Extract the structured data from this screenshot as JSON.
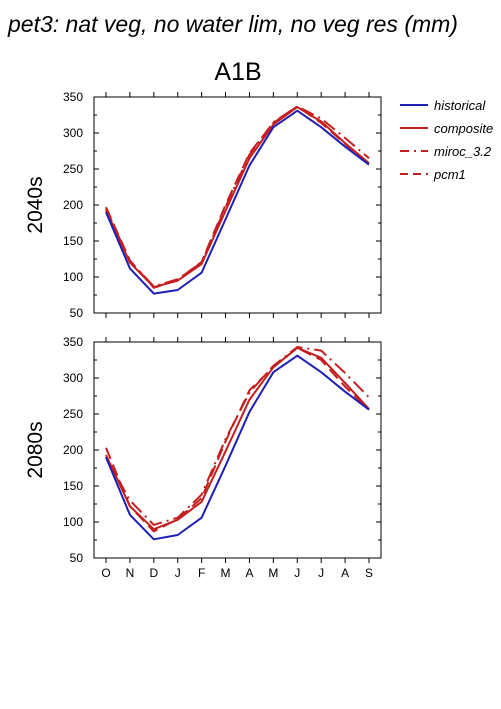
{
  "figure": {
    "title": "pet3: nat veg, no water lim, no veg res (mm)",
    "subtitle": "A1B"
  },
  "colors": {
    "historical": "#1f1fb4",
    "model": "#c41e1e",
    "axis": "#000000"
  },
  "legend": {
    "placement": "right",
    "entries": [
      {
        "label": "historical",
        "style": "solid",
        "color": "#1f1fb4"
      },
      {
        "label": "composite",
        "style": "solid",
        "color": "#c41e1e"
      },
      {
        "label": "miroc_3.2",
        "style": "dashdot",
        "color": "#c41e1e"
      },
      {
        "label": "pcm1",
        "style": "dashed",
        "color": "#c41e1e"
      }
    ]
  },
  "chart_data": [
    {
      "type": "line",
      "panel_label": "2040s",
      "x": [
        "O",
        "N",
        "D",
        "J",
        "F",
        "M",
        "A",
        "M",
        "J",
        "J",
        "A",
        "S"
      ],
      "ylim": [
        50,
        350
      ],
      "yticks": [
        50,
        100,
        150,
        200,
        250,
        300,
        350
      ],
      "grid": false,
      "series": [
        {
          "name": "historical",
          "style": "solid",
          "values": [
            190,
            112,
            77,
            82,
            106,
            180,
            255,
            308,
            331,
            308,
            281,
            256
          ]
        },
        {
          "name": "composite",
          "style": "solid",
          "values": [
            193,
            120,
            86,
            95,
            118,
            192,
            265,
            312,
            336,
            316,
            286,
            258
          ]
        },
        {
          "name": "miroc_3.2",
          "style": "dashdot",
          "values": [
            195,
            122,
            87,
            97,
            120,
            197,
            270,
            315,
            337,
            320,
            293,
            265
          ]
        },
        {
          "name": "pcm1",
          "style": "dashed",
          "values": [
            197,
            123,
            85,
            96,
            121,
            200,
            272,
            314,
            337,
            314,
            285,
            257
          ]
        }
      ]
    },
    {
      "type": "line",
      "panel_label": "2080s",
      "x": [
        "O",
        "N",
        "D",
        "J",
        "F",
        "M",
        "A",
        "M",
        "J",
        "J",
        "A",
        "S"
      ],
      "ylim": [
        50,
        350
      ],
      "yticks": [
        50,
        100,
        150,
        200,
        250,
        300,
        350
      ],
      "grid": false,
      "series": [
        {
          "name": "historical",
          "style": "solid",
          "values": [
            190,
            110,
            76,
            82,
            106,
            178,
            253,
            308,
            331,
            308,
            281,
            256
          ]
        },
        {
          "name": "composite",
          "style": "solid",
          "values": [
            193,
            122,
            90,
            103,
            128,
            198,
            270,
            315,
            342,
            328,
            293,
            257
          ]
        },
        {
          "name": "miroc_3.2",
          "style": "dashdot",
          "values": [
            190,
            130,
            96,
            106,
            138,
            215,
            280,
            317,
            343,
            338,
            307,
            273
          ]
        },
        {
          "name": "pcm1",
          "style": "dashed",
          "values": [
            203,
            122,
            87,
            104,
            133,
            212,
            283,
            315,
            342,
            325,
            288,
            256
          ]
        }
      ]
    }
  ]
}
